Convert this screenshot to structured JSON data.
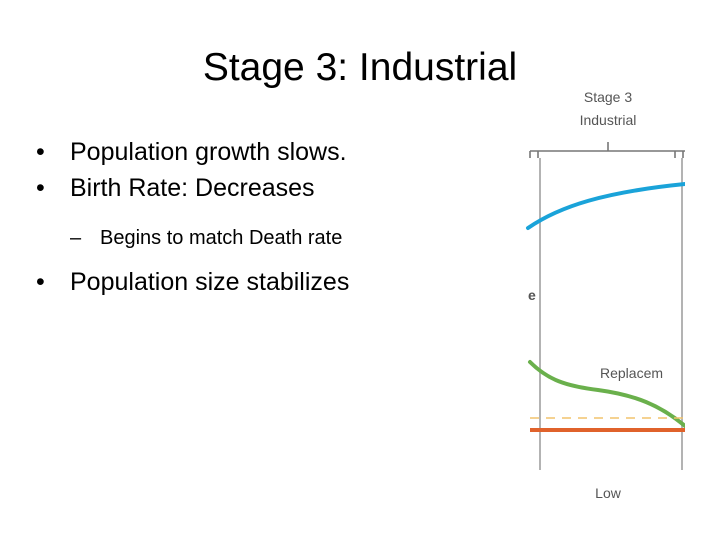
{
  "slide": {
    "title": "Stage 3: Industrial",
    "bullets": [
      "Population growth slows.",
      "Birth Rate: Decreases",
      "Begins to match Death rate",
      "Population size stabilizes"
    ]
  },
  "diagram": {
    "stage_label_line1": "Stage 3",
    "stage_label_line2": "Industrial",
    "partial_left_label": "e",
    "replacement_label": "Replacem",
    "bottom_label": "Low",
    "colors": {
      "birth_rate_line": "#1aa3d9",
      "death_rate_line": "#6ab04c",
      "population_line": "#e0622b",
      "replacement_dash": "#f2c46d",
      "frame": "#b3b3b3"
    }
  }
}
